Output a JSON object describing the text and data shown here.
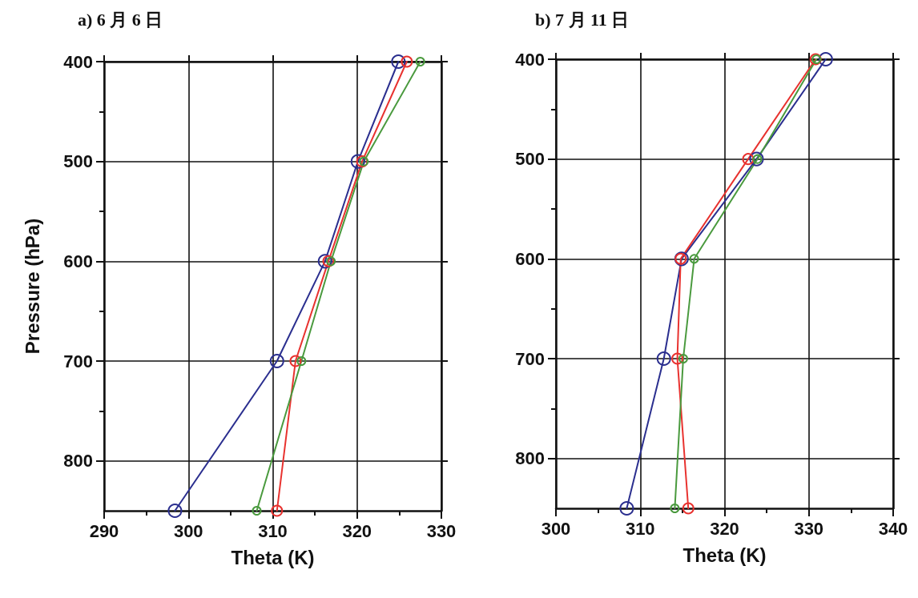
{
  "chart_data": [
    {
      "type": "line",
      "title": "a) 6 月 6 日",
      "xlabel": "Theta (K)",
      "ylabel": "Pressure (hPa)",
      "marker": "circle",
      "grid": true,
      "xlim": [
        290,
        330
      ],
      "xticks": [
        290,
        {
          "value": 295,
          "label": null
        },
        300,
        {
          "value": 305,
          "label": null
        },
        310,
        {
          "value": 315,
          "label": null
        },
        320,
        {
          "value": 325,
          "label": null
        },
        330
      ],
      "ylim": [
        850,
        400
      ],
      "yticks": [
        400,
        {
          "value": 450,
          "label": null
        },
        500,
        {
          "value": 550,
          "label": null
        },
        600,
        {
          "value": 650,
          "label": null
        },
        700,
        {
          "value": 750,
          "label": null
        },
        800
      ],
      "series": [
        {
          "color": "#2b2f8f",
          "x": [
            324.9,
            320.1,
            316.2,
            310.5,
            298.4
          ],
          "values": [
            400,
            500,
            600,
            700,
            850
          ]
        },
        {
          "color": "#e8322f",
          "x": [
            325.9,
            320.6,
            316.6,
            312.7,
            310.5
          ],
          "values": [
            400,
            500,
            600,
            700,
            850
          ]
        },
        {
          "color": "#4a9a3e",
          "x": [
            327.5,
            320.8,
            316.9,
            313.4,
            308.1
          ],
          "values": [
            400,
            500,
            600,
            700,
            850
          ]
        }
      ]
    },
    {
      "type": "line",
      "title": "b) 7 月 11 日",
      "xlabel": "Theta (K)",
      "marker": "circle",
      "grid": true,
      "xlim": [
        300,
        340
      ],
      "xticks": [
        300,
        {
          "value": 305,
          "label": null
        },
        310,
        {
          "value": 315,
          "label": null
        },
        320,
        {
          "value": 325,
          "label": null
        },
        330,
        {
          "value": 335,
          "label": null
        },
        340
      ],
      "ylim": [
        850,
        400
      ],
      "yticks": [
        400,
        {
          "value": 450,
          "label": null
        },
        500,
        {
          "value": 550,
          "label": null
        },
        600,
        {
          "value": 650,
          "label": null
        },
        700,
        {
          "value": 750,
          "label": null
        },
        800
      ],
      "series": [
        {
          "color": "#2b2f8f",
          "x": [
            332.0,
            323.8,
            314.9,
            312.8,
            308.4
          ],
          "values": [
            400,
            500,
            600,
            700,
            850
          ]
        },
        {
          "color": "#e8322f",
          "x": [
            330.8,
            322.8,
            314.8,
            314.4,
            315.7
          ],
          "values": [
            400,
            500,
            600,
            700,
            850
          ]
        },
        {
          "color": "#4a9a3e",
          "x": [
            330.9,
            323.9,
            316.4,
            315.1,
            314.1
          ],
          "values": [
            400,
            500,
            600,
            700,
            850
          ]
        }
      ]
    }
  ]
}
